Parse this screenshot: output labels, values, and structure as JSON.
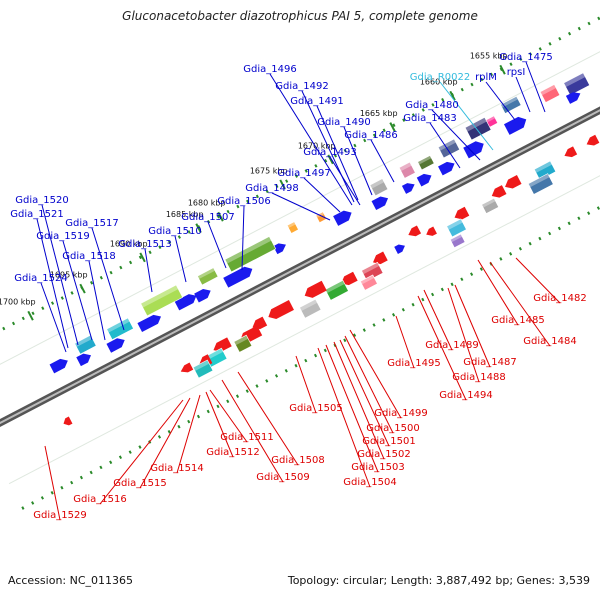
{
  "title": "Gluconacetobacter diazotrophicus PAI 5, complete genome",
  "footer": {
    "accession": "Accession: NC_011365",
    "summary": "Topology: circular; Length: 3,887,492 bp; Genes: 3,539"
  },
  "colors": {
    "forward_label": "#0000cc",
    "reverse_label": "#dd0000",
    "rna_label": "#33bbdd",
    "backbone": "#888888",
    "tick": "#2a8a2a",
    "forward_gene": "#1a1aee",
    "reverse_gene": "#ee1a1a"
  },
  "ticks": [
    "1655 kbp",
    "1660 kbp",
    "1665 kbp",
    "1670 kbp",
    "1675 kbp",
    "1680 kbp",
    "1685 kbp",
    "1690 kbp",
    "1695 kbp",
    "1700 kbp"
  ],
  "forward_labels": [
    "Gdia_1475",
    "rpsI",
    "rplM",
    "Gdia_R0022",
    "Gdia_1480",
    "Gdia_1483",
    "Gdia_1486",
    "Gdia_1490",
    "Gdia_1491",
    "Gdia_1492",
    "Gdia_1496",
    "Gdia_1493",
    "Gdia_1497",
    "Gdia_1498",
    "Gdia_1506",
    "Gdia_1507",
    "Gdia_1510",
    "Gdia_1513",
    "Gdia_1517",
    "Gdia_1518",
    "Gdia_1519",
    "Gdia_1520",
    "Gdia_1521",
    "Gdia_1524"
  ],
  "reverse_labels": [
    "Gdia_1482",
    "Gdia_1484",
    "Gdia_1485",
    "Gdia_1487",
    "Gdia_1488",
    "Gdia_1489",
    "Gdia_1494",
    "Gdia_1495",
    "Gdia_1499",
    "Gdia_1500",
    "Gdia_1501",
    "Gdia_1502",
    "Gdia_1503",
    "Gdia_1504",
    "Gdia_1505",
    "Gdia_1508",
    "Gdia_1509",
    "Gdia_1511",
    "Gdia_1512",
    "Gdia_1514",
    "Gdia_1515",
    "Gdia_1516",
    "Gdia_1529"
  ]
}
